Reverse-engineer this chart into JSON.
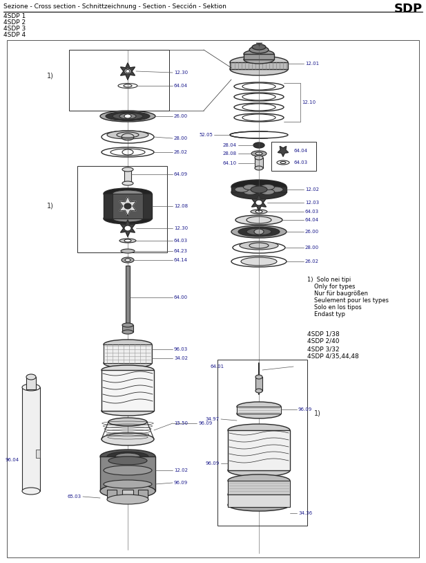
{
  "title_left": "Sezione - Cross section - Schnittzeichnung - Section - Sección - Sektion",
  "title_right": "SDP",
  "subtitle_lines": [
    "4SDP 1",
    "4SDP 2",
    "4SDP 3",
    "4SDP 4"
  ],
  "note_lines": [
    "Solo nei tipi",
    "Only for types",
    "Nur für baugrößen",
    "Seulement pour les types",
    "Solo en los tipos",
    "Endast typ"
  ],
  "note_types": [
    "4SDP 1/38",
    "4SDP 2/40",
    "4SDP 3/32",
    "4SDP 4/35,44,48"
  ],
  "bg_color": "#ffffff",
  "dc": "#2a2a2a",
  "tc": "#1a1a8c",
  "lc": "#555555"
}
